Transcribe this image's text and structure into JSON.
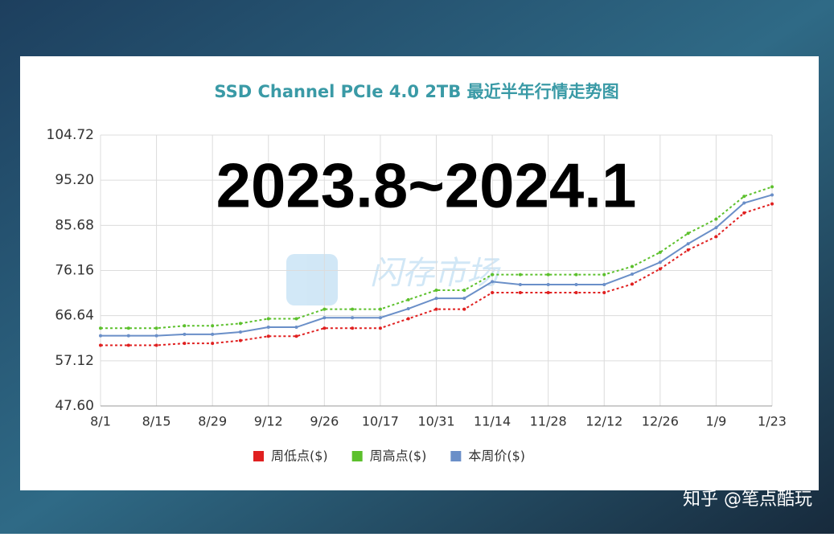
{
  "chart_data": {
    "type": "line",
    "title": "SSD Channel PCIe 4.0 2TB 最近半年行情走势图",
    "categories": [
      "8/1",
      null,
      "8/15",
      null,
      "8/29",
      null,
      "9/12",
      null,
      "9/26",
      null,
      "10/17",
      null,
      "10/31",
      null,
      "11/14",
      null,
      "11/28",
      null,
      "12/12",
      null,
      "12/26",
      null,
      "1/9",
      null,
      "1/23"
    ],
    "series": [
      {
        "name": "周低点($)",
        "color": "#e02020",
        "style": "dotted",
        "values": [
          60.4,
          60.4,
          60.4,
          60.8,
          60.8,
          61.4,
          62.3,
          62.3,
          64.0,
          64.0,
          64.0,
          66.0,
          68.0,
          68.0,
          71.5,
          71.5,
          71.5,
          71.5,
          71.5,
          73.3,
          76.5,
          80.5,
          83.3,
          88.3,
          90.2
        ]
      },
      {
        "name": "周高点($)",
        "color": "#5cc02c",
        "style": "dotted",
        "values": [
          64.0,
          64.0,
          64.0,
          64.5,
          64.5,
          65.0,
          66.0,
          66.0,
          68.0,
          68.0,
          68.0,
          70.0,
          72.0,
          72.0,
          75.3,
          75.3,
          75.3,
          75.3,
          75.3,
          77.0,
          80.0,
          84.0,
          87.0,
          91.8,
          93.8
        ]
      },
      {
        "name": "本周价($)",
        "color": "#6a8fc8",
        "style": "solid",
        "values": [
          62.4,
          62.4,
          62.4,
          62.7,
          62.7,
          63.2,
          64.2,
          64.2,
          66.2,
          66.2,
          66.2,
          68.1,
          70.3,
          70.3,
          73.8,
          73.2,
          73.2,
          73.2,
          73.2,
          75.4,
          77.9,
          81.8,
          85.2,
          90.4,
          92.1
        ]
      }
    ],
    "ylim": [
      47.6,
      104.72
    ],
    "yticks": [
      {
        "value": 47.6,
        "label": "47.60"
      },
      57.12,
      66.64,
      76.16,
      85.68,
      {
        "value": 95.2,
        "label": "95.20"
      },
      104.72
    ],
    "grid": true,
    "legend": "bottom",
    "annotations": {
      "overlay": "2023.8~2024.1",
      "watermark": "闪存市场",
      "credit": "知乎 @笔点酷玩"
    }
  }
}
